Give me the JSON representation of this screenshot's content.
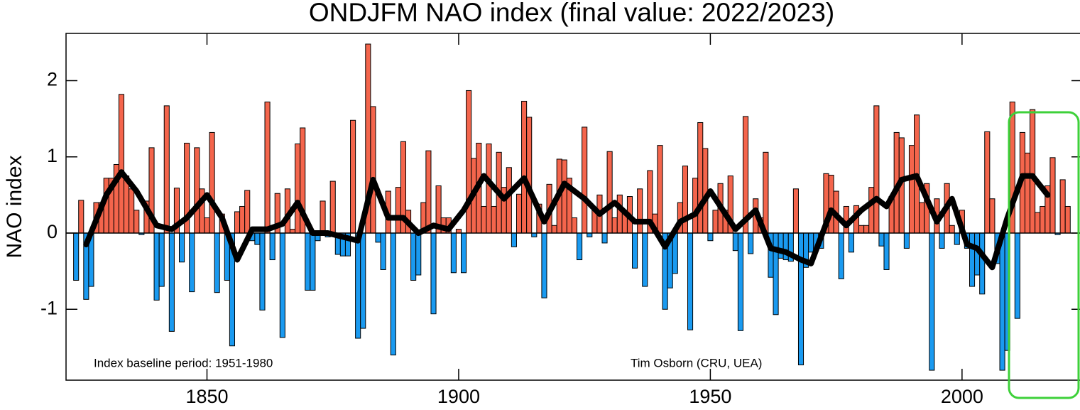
{
  "chart_data": {
    "type": "bar",
    "title": "ONDJFM NAO index (final value: 2022/2023)",
    "y_label": "NAO index",
    "annotations": [
      "Index baseline period: 1951-1980",
      "Tim Osborn (CRU, UEA)"
    ],
    "xlim": [
      1822,
      2024
    ],
    "ylim": [
      -1.93,
      2.62
    ],
    "xticks": [
      1850,
      1900,
      1950,
      2000
    ],
    "yticks": [
      -1,
      0,
      1,
      2
    ],
    "grid": false,
    "positive_color": "#f4654c",
    "negative_color": "#1a9af0",
    "x": [
      1824,
      1825,
      1826,
      1827,
      1828,
      1829,
      1830,
      1831,
      1832,
      1833,
      1834,
      1835,
      1836,
      1837,
      1838,
      1839,
      1840,
      1841,
      1842,
      1843,
      1844,
      1845,
      1846,
      1847,
      1848,
      1849,
      1850,
      1851,
      1852,
      1853,
      1854,
      1855,
      1856,
      1857,
      1858,
      1859,
      1860,
      1861,
      1862,
      1863,
      1864,
      1865,
      1866,
      1867,
      1868,
      1869,
      1870,
      1871,
      1872,
      1873,
      1874,
      1875,
      1876,
      1877,
      1878,
      1879,
      1880,
      1881,
      1882,
      1883,
      1884,
      1885,
      1886,
      1887,
      1888,
      1889,
      1890,
      1891,
      1892,
      1893,
      1894,
      1895,
      1896,
      1897,
      1898,
      1899,
      1900,
      1901,
      1902,
      1903,
      1904,
      1905,
      1906,
      1907,
      1908,
      1909,
      1910,
      1911,
      1912,
      1913,
      1914,
      1915,
      1916,
      1917,
      1918,
      1919,
      1920,
      1921,
      1922,
      1923,
      1924,
      1925,
      1926,
      1927,
      1928,
      1929,
      1930,
      1931,
      1932,
      1933,
      1934,
      1935,
      1936,
      1937,
      1938,
      1939,
      1940,
      1941,
      1942,
      1943,
      1944,
      1945,
      1946,
      1947,
      1948,
      1949,
      1950,
      1951,
      1952,
      1953,
      1954,
      1955,
      1956,
      1957,
      1958,
      1959,
      1960,
      1961,
      1962,
      1963,
      1964,
      1965,
      1966,
      1967,
      1968,
      1969,
      1970,
      1971,
      1972,
      1973,
      1974,
      1975,
      1976,
      1977,
      1978,
      1979,
      1980,
      1981,
      1982,
      1983,
      1984,
      1985,
      1986,
      1987,
      1988,
      1989,
      1990,
      1991,
      1992,
      1993,
      1994,
      1995,
      1996,
      1997,
      1998,
      1999,
      2000,
      2001,
      2002,
      2003,
      2004,
      2005,
      2006,
      2007,
      2008,
      2009,
      2010,
      2011,
      2012,
      2013,
      2014,
      2015,
      2016,
      2017,
      2018,
      2019,
      2020,
      2021
    ],
    "values": [
      -0.62,
      0.43,
      -0.87,
      -0.7,
      0.4,
      0.4,
      0.72,
      0.72,
      0.9,
      1.82,
      0.75,
      0.58,
      0.3,
      -0.02,
      0.42,
      1.12,
      -0.88,
      -0.7,
      1.67,
      -1.29,
      0.59,
      -0.38,
      1.18,
      -0.77,
      1.12,
      0.58,
      0.2,
      1.32,
      -0.78,
      0.25,
      -0.62,
      -1.48,
      0.28,
      0.35,
      0.56,
      -0.1,
      -0.15,
      -1.01,
      1.72,
      -0.35,
      0.52,
      -1.37,
      0.58,
      0.05,
      1.17,
      1.38,
      -0.75,
      -0.75,
      -0.1,
      0.42,
      -0.05,
      0.68,
      -0.28,
      -0.3,
      -0.3,
      1.48,
      -1.38,
      -1.25,
      2.48,
      1.66,
      -0.12,
      -0.48,
      0.55,
      -1.6,
      0.6,
      1.2,
      0.3,
      -0.62,
      -0.55,
      0.4,
      1.08,
      -1.06,
      0.62,
      0.2,
      0.2,
      -0.52,
      0.05,
      -0.52,
      1.87,
      0.98,
      1.18,
      0.35,
      1.17,
      0.35,
      1.06,
      0.6,
      0.86,
      -0.18,
      0.51,
      1.73,
      1.52,
      -0.05,
      0.38,
      -0.85,
      0.64,
      0.1,
      0.97,
      0.96,
      0.72,
      0.2,
      -0.35,
      1.39,
      -0.05,
      0.3,
      0.5,
      -0.13,
      1.07,
      0.2,
      0.5,
      0.3,
      0.48,
      -0.46,
      0.58,
      -0.7,
      0.82,
      0.25,
      1.15,
      -1.0,
      -0.72,
      -0.53,
      0.4,
      0.88,
      -1.27,
      0.72,
      1.45,
      1.11,
      -0.1,
      0.3,
      0.65,
      0.3,
      0.75,
      -0.23,
      -1.28,
      1.53,
      -0.27,
      0.45,
      0.2,
      1.06,
      -0.58,
      -1.07,
      -0.33,
      -0.35,
      -0.37,
      0.58,
      -1.73,
      -0.45,
      -0.25,
      -0.22,
      -0.2,
      0.78,
      0.76,
      0.55,
      -0.6,
      0.35,
      -0.25,
      0.36,
      0.1,
      0.1,
      0.6,
      1.67,
      -0.17,
      -0.48,
      0.48,
      1.32,
      1.25,
      -0.2,
      1.15,
      1.55,
      0.4,
      0.65,
      -1.8,
      0.45,
      -0.2,
      0.65,
      0.1,
      -0.15,
      0.3,
      -0.2,
      -0.7,
      -0.55,
      -0.8,
      1.33,
      0.45,
      -0.4,
      -1.8,
      -1.54,
      1.72,
      -1.12,
      1.32,
      1.05,
      1.62,
      0.27,
      0.35,
      0.62,
      0.99,
      -0.02,
      0.7,
      0.35
    ],
    "smoothed": {
      "color": "#000000",
      "x": [
        1826,
        1830,
        1833,
        1836,
        1840,
        1843,
        1846,
        1850,
        1853,
        1856,
        1859,
        1862,
        1865,
        1868,
        1871,
        1874,
        1877,
        1880,
        1883,
        1886,
        1889,
        1892,
        1895,
        1898,
        1901,
        1905,
        1909,
        1913,
        1917,
        1921,
        1925,
        1928,
        1931,
        1935,
        1938,
        1941,
        1944,
        1947,
        1950,
        1953,
        1955,
        1959,
        1962,
        1965,
        1968,
        1970,
        1974,
        1977,
        1980,
        1983,
        1985,
        1988,
        1991,
        1995,
        1998,
        2001,
        2003,
        2006,
        2009,
        2012,
        2014,
        2017
      ],
      "values": [
        -0.15,
        0.5,
        0.8,
        0.55,
        0.1,
        0.05,
        0.2,
        0.5,
        0.2,
        -0.35,
        0.05,
        0.05,
        0.12,
        0.4,
        0.0,
        0.0,
        -0.05,
        -0.1,
        0.7,
        0.2,
        0.2,
        0.0,
        0.1,
        0.05,
        0.3,
        0.75,
        0.45,
        0.72,
        0.15,
        0.65,
        0.45,
        0.25,
        0.4,
        0.15,
        0.15,
        -0.18,
        0.15,
        0.25,
        0.55,
        0.25,
        0.05,
        0.3,
        -0.2,
        -0.25,
        -0.35,
        -0.4,
        0.3,
        0.1,
        0.3,
        0.45,
        0.35,
        0.7,
        0.75,
        0.15,
        0.45,
        -0.15,
        -0.2,
        -0.45,
        0.2,
        0.75,
        0.75,
        0.5
      ]
    }
  }
}
